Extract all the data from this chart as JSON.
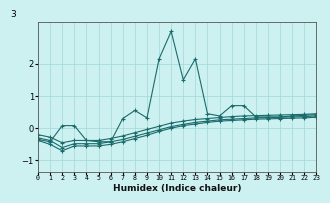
{
  "title": "",
  "xlabel": "Humidex (Indice chaleur)",
  "background_color": "#cdf0f0",
  "grid_color": "#a0d8d8",
  "line_color": "#1a6b6b",
  "x_values": [
    0,
    1,
    2,
    3,
    4,
    5,
    6,
    7,
    8,
    9,
    10,
    11,
    12,
    13,
    14,
    15,
    16,
    17,
    18,
    19,
    20,
    21,
    22,
    23
  ],
  "series1": [
    -0.35,
    -0.42,
    0.08,
    0.08,
    -0.38,
    -0.42,
    -0.42,
    0.3,
    0.55,
    0.32,
    2.15,
    3.0,
    1.5,
    2.15,
    0.45,
    0.38,
    0.7,
    0.7,
    0.35,
    0.35,
    0.35,
    0.38,
    0.4,
    0.42
  ],
  "series2": [
    -0.3,
    -0.38,
    -0.6,
    -0.48,
    -0.48,
    -0.48,
    -0.42,
    -0.35,
    -0.25,
    -0.15,
    -0.05,
    0.05,
    0.12,
    0.18,
    0.22,
    0.26,
    0.28,
    0.3,
    0.32,
    0.33,
    0.34,
    0.35,
    0.36,
    0.38
  ],
  "series3": [
    -0.38,
    -0.5,
    -0.7,
    -0.55,
    -0.55,
    -0.55,
    -0.5,
    -0.42,
    -0.32,
    -0.22,
    -0.1,
    0.0,
    0.08,
    0.13,
    0.18,
    0.22,
    0.24,
    0.26,
    0.28,
    0.29,
    0.3,
    0.31,
    0.32,
    0.34
  ],
  "series4": [
    -0.2,
    -0.28,
    -0.45,
    -0.38,
    -0.38,
    -0.38,
    -0.32,
    -0.24,
    -0.14,
    -0.04,
    0.06,
    0.16,
    0.22,
    0.27,
    0.3,
    0.33,
    0.36,
    0.38,
    0.39,
    0.4,
    0.41,
    0.42,
    0.43,
    0.45
  ],
  "ylim": [
    -1.35,
    3.3
  ],
  "yticks": [
    -1,
    0,
    1,
    2
  ],
  "xlim": [
    0,
    23
  ],
  "title_y_label": "3"
}
